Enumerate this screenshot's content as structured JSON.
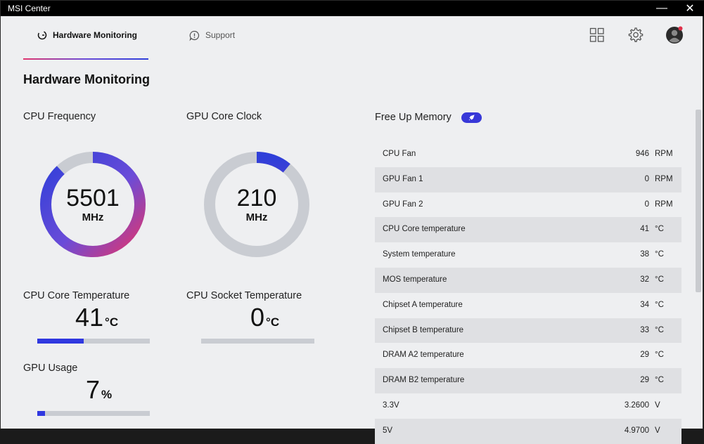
{
  "window": {
    "title": "MSI Center",
    "minimize": "—",
    "close": "✕"
  },
  "nav": {
    "tabs": [
      {
        "label": "Hardware Monitoring",
        "icon": "gauge-icon",
        "active": true
      },
      {
        "label": "Support",
        "icon": "alert-icon",
        "active": false
      }
    ],
    "icons": [
      "apps-grid-icon",
      "gear-icon",
      "avatar"
    ]
  },
  "page": {
    "title": "Hardware Monitoring"
  },
  "cpu_frequency": {
    "label": "CPU Frequency",
    "value": "5501",
    "unit": "MHz",
    "fraction": 0.88
  },
  "gpu_core_clock": {
    "label": "GPU Core Clock",
    "value": "210",
    "unit": "MHz",
    "fraction": 0.11
  },
  "cpu_core_temp": {
    "label": "CPU Core Temperature",
    "value": "41",
    "unit": "°C",
    "fraction": 0.41
  },
  "cpu_socket_temp": {
    "label": "CPU Socket Temperature",
    "value": "0",
    "unit": "°C",
    "fraction": 0.0
  },
  "gpu_usage": {
    "label": "GPU Usage",
    "value": "7",
    "unit": "%",
    "fraction": 0.07
  },
  "free_memory": {
    "label": "Free Up Memory"
  },
  "sensors": [
    {
      "label": "CPU Fan",
      "value": "946",
      "unit": "RPM"
    },
    {
      "label": "GPU Fan 1",
      "value": "0",
      "unit": "RPM"
    },
    {
      "label": "GPU Fan 2",
      "value": "0",
      "unit": "RPM"
    },
    {
      "label": "CPU Core temperature",
      "value": "41",
      "unit": "°C"
    },
    {
      "label": "System temperature",
      "value": "38",
      "unit": "°C"
    },
    {
      "label": "MOS temperature",
      "value": "32",
      "unit": "°C"
    },
    {
      "label": "Chipset A temperature",
      "value": "34",
      "unit": "°C"
    },
    {
      "label": "Chipset B temperature",
      "value": "33",
      "unit": "°C"
    },
    {
      "label": "DRAM A2 temperature",
      "value": "29",
      "unit": "°C"
    },
    {
      "label": "DRAM B2 temperature",
      "value": "29",
      "unit": "°C"
    },
    {
      "label": "3.3V",
      "value": "3.2600",
      "unit": "V"
    },
    {
      "label": "5V",
      "value": "4.9700",
      "unit": "V"
    }
  ],
  "colors": {
    "accent": "#3038e0",
    "gauge_start": "#e0356e",
    "gauge_mid": "#6a4cd8",
    "gauge_end": "#2f3fd9",
    "track": "#c9ccd2"
  }
}
